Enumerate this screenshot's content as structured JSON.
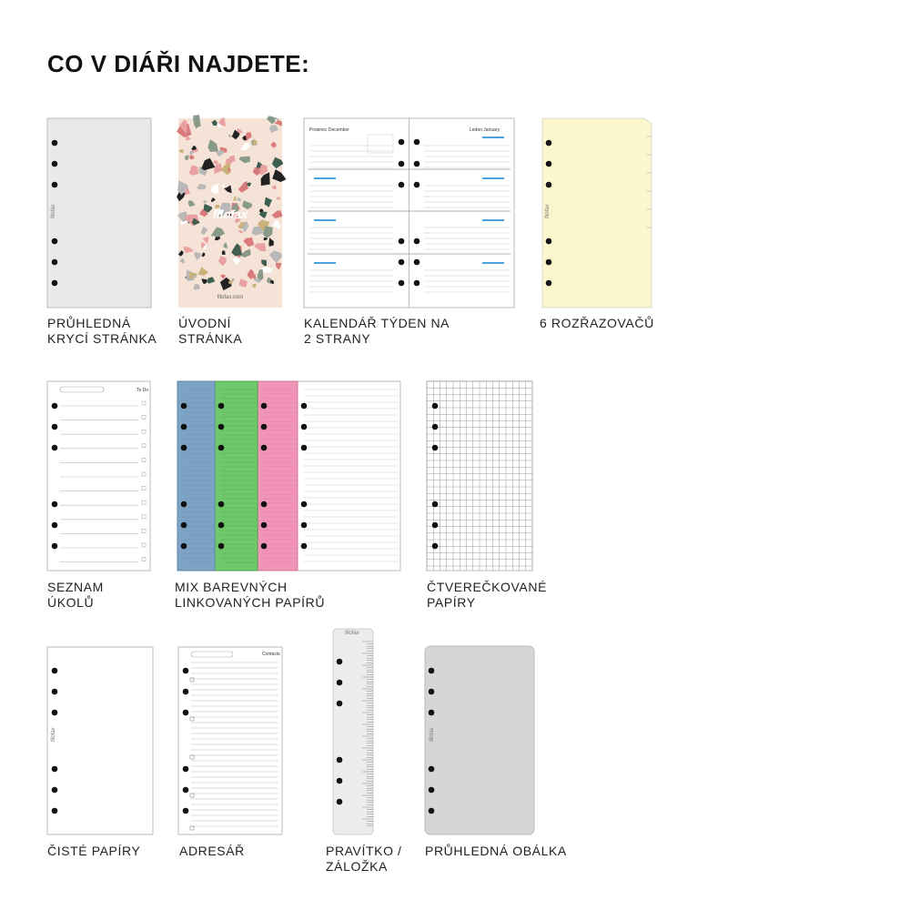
{
  "title": "CO V DIÁŘI NAJDETE:",
  "items": [
    {
      "caption": [
        "PRŮHLEDNÁ",
        "KRYCÍ STRÁNKA"
      ],
      "texts": [
        "filofax"
      ]
    },
    {
      "caption": [
        "ÚVODNÍ",
        "STRÁNKA"
      ],
      "texts": [
        "filofax",
        "filofax.com"
      ]
    },
    {
      "caption": [
        "KALENDÁŘ TÝDEN NA",
        "2 STRANY"
      ],
      "texts": [
        "Prosinec December",
        "Leden January"
      ]
    },
    {
      "caption": [
        "6 ROZŘAZOVAČŮ"
      ],
      "texts": [
        "filofax"
      ]
    },
    {
      "caption": [
        "SEZNAM",
        "ÚKOLŮ"
      ],
      "texts": [
        "To Do"
      ]
    },
    {
      "caption": [
        "MIX BAREVNÝCH",
        "LINKOVANÝCH PAPÍRŮ"
      ],
      "texts": []
    },
    {
      "caption": [
        "ČTVEREČKOVANÉ",
        "PAPÍRY"
      ],
      "texts": []
    },
    {
      "caption": [
        "ČISTÉ PAPÍRY"
      ],
      "texts": [
        "filofax"
      ]
    },
    {
      "caption": [
        "ADRESÁŘ"
      ],
      "texts": [
        "Contacts"
      ]
    },
    {
      "caption": [
        "PRAVÍTKO /",
        "ZÁLOŽKA"
      ],
      "texts": [
        "filofax"
      ]
    },
    {
      "caption": [
        "PRŮHLEDNÁ OBÁLKA"
      ],
      "texts": [
        "filofax"
      ]
    }
  ]
}
